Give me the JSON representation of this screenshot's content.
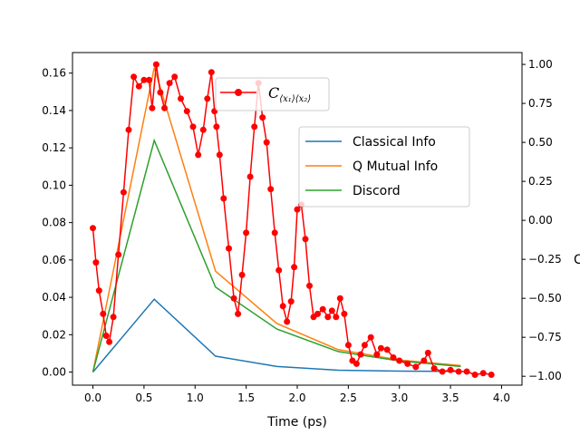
{
  "chart_data": {
    "type": "line",
    "xlabel": "Time (ps)",
    "ylabel_left": "",
    "ylabel_right": "C",
    "xlim": [
      -0.2,
      4.2
    ],
    "ylim_left": [
      -0.007,
      0.171
    ],
    "ylim_right": [
      -1.057,
      1.076
    ],
    "x_ticks": [
      0.0,
      0.5,
      1.0,
      1.5,
      2.0,
      2.5,
      3.0,
      3.5,
      4.0
    ],
    "x_tick_labels": [
      "0.0",
      "0.5",
      "1.0",
      "1.5",
      "2.0",
      "2.5",
      "3.0",
      "3.5",
      "4.0"
    ],
    "y_left_ticks": [
      0.0,
      0.02,
      0.04,
      0.06,
      0.08,
      0.1,
      0.12,
      0.14,
      0.16
    ],
    "y_left_tick_labels": [
      "0.00",
      "0.02",
      "0.04",
      "0.06",
      "0.08",
      "0.10",
      "0.12",
      "0.14",
      "0.16"
    ],
    "y_right_ticks": [
      -1.0,
      -0.75,
      -0.5,
      -0.25,
      0.0,
      0.25,
      0.5,
      0.75,
      1.0
    ],
    "y_right_tick_labels": [
      "−1.00",
      "−0.75",
      "−0.50",
      "−0.25",
      "0.00",
      "0.25",
      "0.50",
      "0.75",
      "1.00"
    ],
    "grid": false,
    "legend_left_axis": {
      "placement": "upper-right",
      "entries": [
        "Classical Info",
        "Q Mutual Info",
        "Discord"
      ]
    },
    "legend_right_axis": {
      "placement": "upper-center",
      "label_main": "C",
      "label_sub": "⟨x₁⟩⟨x₂⟩"
    },
    "series_left": [
      {
        "name": "Classical Info",
        "color": "#1f77b4",
        "x": [
          0.0,
          0.6,
          1.2,
          1.8,
          2.4,
          3.0,
          3.6
        ],
        "y": [
          0.0,
          0.039,
          0.0085,
          0.003,
          0.001,
          0.0005,
          0.0003
        ]
      },
      {
        "name": "Q Mutual Info",
        "color": "#ff7f0e",
        "x": [
          0.0,
          0.6,
          1.2,
          1.8,
          2.4,
          3.0,
          3.6
        ],
        "y": [
          0.0,
          0.163,
          0.054,
          0.026,
          0.012,
          0.0065,
          0.0035
        ]
      },
      {
        "name": "Discord",
        "color": "#2ca02c",
        "x": [
          0.0,
          0.6,
          1.2,
          1.8,
          2.4,
          3.0,
          3.6
        ],
        "y": [
          0.0,
          0.124,
          0.0455,
          0.023,
          0.011,
          0.006,
          0.003
        ]
      }
    ],
    "series_right": {
      "name": "C⟨x₁⟩⟨x₂⟩",
      "color": "#ff0000",
      "x": [
        0.0,
        0.03,
        0.06,
        0.1,
        0.13,
        0.16,
        0.2,
        0.25,
        0.3,
        0.35,
        0.4,
        0.45,
        0.5,
        0.55,
        0.58,
        0.62,
        0.66,
        0.7,
        0.75,
        0.8,
        0.86,
        0.92,
        0.98,
        1.03,
        1.08,
        1.12,
        1.16,
        1.19,
        1.21,
        1.24,
        1.28,
        1.33,
        1.38,
        1.42,
        1.46,
        1.5,
        1.54,
        1.58,
        1.62,
        1.66,
        1.7,
        1.74,
        1.78,
        1.82,
        1.86,
        1.9,
        1.94,
        1.97,
        2.0,
        2.04,
        2.08,
        2.12,
        2.16,
        2.2,
        2.25,
        2.3,
        2.34,
        2.38,
        2.42,
        2.46,
        2.5,
        2.54,
        2.58,
        2.62,
        2.66,
        2.72,
        2.78,
        2.82,
        2.88,
        2.94,
        3.0,
        3.08,
        3.16,
        3.24,
        3.28,
        3.34,
        3.42,
        3.5,
        3.58,
        3.66,
        3.74,
        3.82,
        3.9
      ],
      "y": [
        -0.05,
        -0.27,
        -0.45,
        -0.6,
        -0.74,
        -0.78,
        -0.62,
        -0.22,
        0.18,
        0.58,
        0.92,
        0.86,
        0.9,
        0.9,
        0.72,
        1.0,
        0.82,
        0.72,
        0.88,
        0.92,
        0.78,
        0.7,
        0.6,
        0.42,
        0.58,
        0.78,
        0.95,
        0.7,
        0.6,
        0.42,
        0.14,
        -0.18,
        -0.5,
        -0.6,
        -0.35,
        -0.08,
        0.28,
        0.6,
        0.88,
        0.66,
        0.5,
        0.2,
        -0.08,
        -0.32,
        -0.55,
        -0.65,
        -0.52,
        -0.3,
        0.07,
        0.1,
        -0.12,
        -0.42,
        -0.62,
        -0.6,
        -0.57,
        -0.62,
        -0.58,
        -0.62,
        -0.5,
        -0.6,
        -0.8,
        -0.9,
        -0.92,
        -0.86,
        -0.8,
        -0.75,
        -0.86,
        -0.82,
        -0.83,
        -0.88,
        -0.9,
        -0.92,
        -0.94,
        -0.9,
        -0.85,
        -0.95,
        -0.97,
        -0.96,
        -0.97,
        -0.97,
        -0.99,
        -0.98,
        -0.99
      ]
    }
  }
}
